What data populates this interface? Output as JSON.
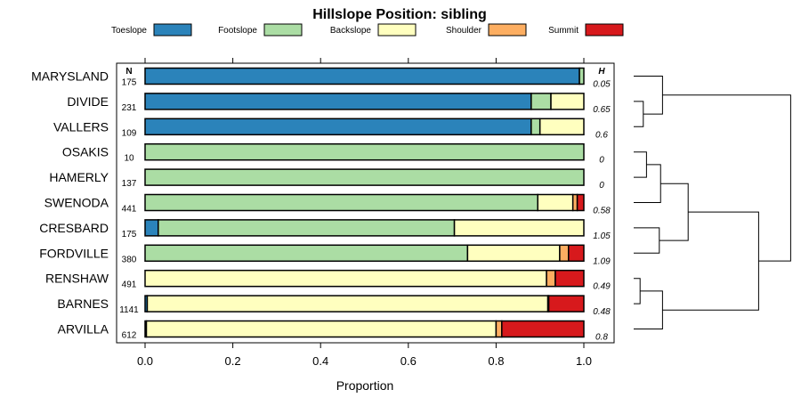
{
  "chart_data": {
    "type": "bar",
    "stacked": true,
    "orientation": "horizontal",
    "title": "Hillslope Position: sibling",
    "xlabel": "Proportion",
    "ylabel": "",
    "xlim": [
      0,
      1
    ],
    "x_ticks": [
      "0.0",
      "0.2",
      "0.4",
      "0.6",
      "0.8",
      "1.0"
    ],
    "n_header": "N",
    "h_header": "H",
    "legend_position": "top",
    "legend": [
      {
        "name": "Toeslope",
        "color": "#2b83ba"
      },
      {
        "name": "Footslope",
        "color": "#abdda4"
      },
      {
        "name": "Backslope",
        "color": "#ffffbf"
      },
      {
        "name": "Shoulder",
        "color": "#fdae61"
      },
      {
        "name": "Summit",
        "color": "#d7191c"
      }
    ],
    "categories": [
      "MARYSLAND",
      "DIVIDE",
      "VALLERS",
      "OSAKIS",
      "HAMERLY",
      "SWENODA",
      "CRESBARD",
      "FORDVILLE",
      "RENSHAW",
      "BARNES",
      "ARVILLA"
    ],
    "n": [
      "175",
      "231",
      "109",
      "10",
      "137",
      "441",
      "175",
      "380",
      "491",
      "1141",
      "612"
    ],
    "h": [
      "0.05",
      "0.65",
      "0.6",
      "0",
      "0",
      "0.58",
      "1.05",
      "1.09",
      "0.49",
      "0.48",
      "0.8"
    ],
    "series": [
      {
        "name": "Toeslope",
        "values": [
          0.99,
          0.88,
          0.88,
          0.0,
          0.0,
          0.0,
          0.03,
          0.0,
          0.0,
          0.005,
          0.003
        ]
      },
      {
        "name": "Footslope",
        "values": [
          0.01,
          0.045,
          0.02,
          1.0,
          1.0,
          0.895,
          0.675,
          0.735,
          0.0,
          0.0,
          0.0
        ]
      },
      {
        "name": "Backslope",
        "values": [
          0.0,
          0.075,
          0.1,
          0.0,
          0.0,
          0.08,
          0.295,
          0.21,
          0.915,
          0.913,
          0.797
        ]
      },
      {
        "name": "Shoulder",
        "values": [
          0.0,
          0.0,
          0.0,
          0.0,
          0.0,
          0.01,
          0.0,
          0.02,
          0.02,
          0.002,
          0.013
        ]
      },
      {
        "name": "Summit",
        "values": [
          0.0,
          0.0,
          0.0,
          0.0,
          0.0,
          0.015,
          0.0,
          0.035,
          0.065,
          0.08,
          0.187
        ]
      }
    ],
    "dendrogram_merges": [
      [
        1,
        2
      ],
      [
        0,
        11
      ],
      [
        3,
        4
      ],
      [
        5,
        13
      ],
      [
        6,
        7
      ],
      [
        14,
        15
      ],
      [
        8,
        9
      ],
      [
        10,
        17
      ],
      [
        16,
        18
      ],
      [
        12,
        19
      ]
    ],
    "dendrogram_heights": [
      0.15,
      0.45,
      0.2,
      0.42,
      0.4,
      0.85,
      0.1,
      0.45,
      1.95,
      2.45
    ]
  }
}
